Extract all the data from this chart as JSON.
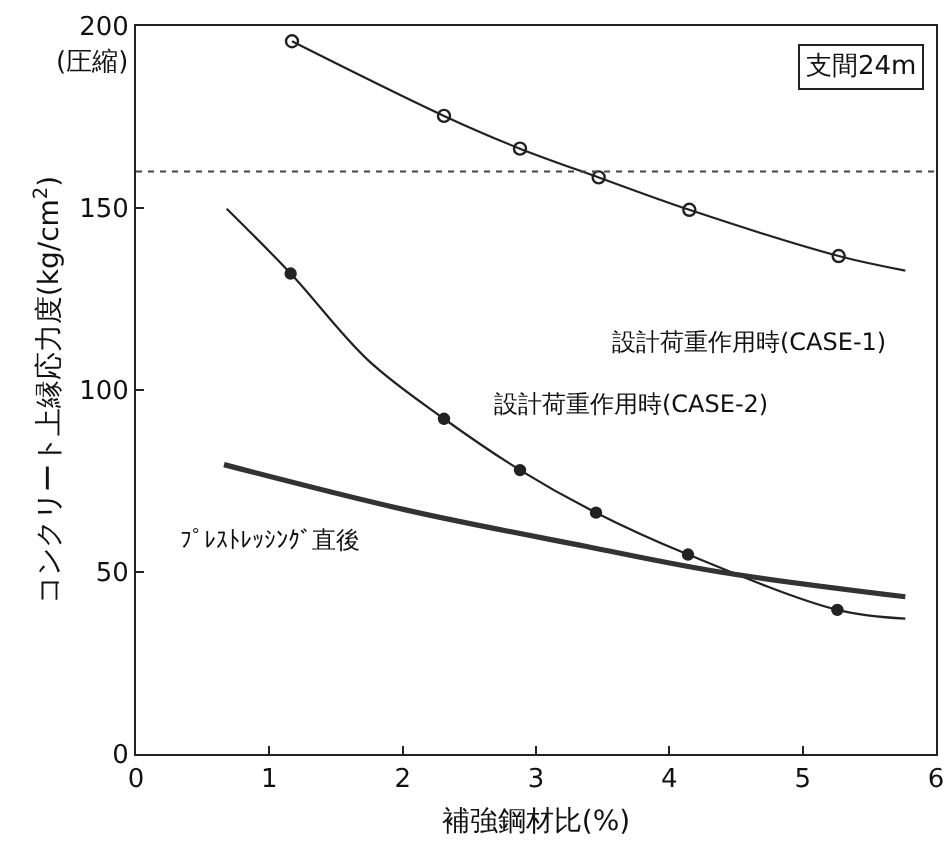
{
  "chart_data": {
    "type": "line",
    "xlabel": "補強鋼材比(%)",
    "ylabel": "コンクリート上縁応力度(kg/cm$^{2}$)",
    "xlim": [
      0,
      6
    ],
    "xticks": [
      0,
      1,
      2,
      3,
      4,
      5,
      6
    ],
    "ylim": [
      0,
      200
    ],
    "yticks": [
      0,
      50,
      100,
      150,
      200
    ],
    "grid": false,
    "legend": false,
    "series": [
      {
        "name": "設計荷重作用時(CASE-1)",
        "color": "#222222",
        "marker": "none",
        "x": [
          1.17,
          2.31,
          2.88,
          3.47,
          4.15,
          5.27,
          5.77
        ],
        "values": [
          195.8,
          175.3,
          166.3,
          158.4,
          149.5,
          136.8,
          132.8
        ]
      },
      {
        "type": "scatter",
        "color": "#222222",
        "marker": "circle",
        "x": [
          1.17,
          2.31,
          2.88,
          3.47,
          4.15,
          5.27
        ],
        "values": [
          195.8,
          175.3,
          166.3,
          158.4,
          149.5,
          136.8
        ]
      },
      {
        "name": "設計荷重作用時(CASE-2)",
        "color": "#222222",
        "marker": "none",
        "x": [
          0.68,
          1.16,
          1.74,
          2.31,
          2.88,
          3.45,
          4.14,
          5.26,
          5.77
        ],
        "values": [
          149.8,
          132,
          108.2,
          92.1,
          78,
          66.3,
          54.8,
          39.6,
          37.2
        ]
      },
      {
        "type": "scatter",
        "color": "#222222",
        "marker": "circle",
        "x": [
          1.16,
          2.31,
          2.88,
          3.45,
          4.14,
          5.26
        ],
        "values": [
          132,
          92.1,
          78,
          66.3,
          54.8,
          39.6
        ]
      },
      {
        "name": "ﾌﾟﾚｽﾄﾚｯｼﾝｸﾞ直後",
        "color": "#333333",
        "marker": "none",
        "x": [
          0.66,
          2.03,
          3.38,
          4.38,
          5.77
        ],
        "values": [
          79.5,
          67,
          57,
          50,
          43.2
        ]
      }
    ],
    "ref_lines": [
      {
        "axis": "y",
        "value": 160,
        "line_style": "dotted",
        "color": "#444444"
      }
    ],
    "annotations": [
      "支間24m",
      "(圧縮)"
    ]
  }
}
